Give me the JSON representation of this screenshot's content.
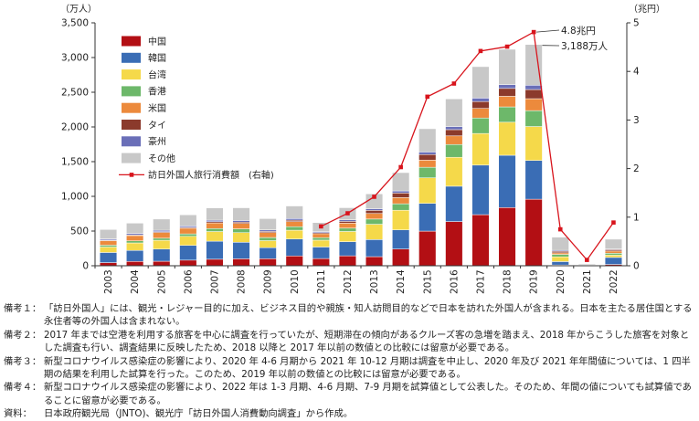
{
  "chart_data": {
    "type": "bar",
    "stacked": true,
    "left_unit": "（万人）",
    "right_unit": "（兆円）",
    "categories": [
      "2003",
      "2004",
      "2005",
      "2006",
      "2007",
      "2008",
      "2009",
      "2010",
      "2011",
      "2012",
      "2013",
      "2014",
      "2015",
      "2016",
      "2017",
      "2018",
      "2019",
      "2020",
      "2021",
      "2022"
    ],
    "ylim": [
      0,
      3500
    ],
    "yticks": [
      "0",
      "500",
      "1,000",
      "1,500",
      "2,000",
      "2,500",
      "3,000",
      "3,500"
    ],
    "y2lim": [
      0,
      5
    ],
    "y2ticks": [
      "0",
      "1",
      "2",
      "3",
      "4",
      "5"
    ],
    "grid": false,
    "legend_position": "top-left",
    "series": [
      {
        "name": "中国",
        "color": "#b30f14",
        "values": [
          45,
          62,
          65,
          81,
          94,
          100,
          101,
          141,
          104,
          143,
          131,
          241,
          499,
          637,
          736,
          838,
          959,
          11,
          4,
          19
        ]
      },
      {
        "name": "韓国",
        "color": "#3a6db5",
        "values": [
          146,
          159,
          175,
          212,
          260,
          238,
          159,
          244,
          166,
          204,
          246,
          276,
          400,
          509,
          714,
          754,
          558,
          49,
          2,
          101
        ]
      },
      {
        "name": "台湾",
        "color": "#f5d94a",
        "values": [
          79,
          108,
          127,
          131,
          139,
          139,
          102,
          127,
          99,
          147,
          221,
          283,
          368,
          417,
          456,
          476,
          489,
          69,
          1,
          33
        ]
      },
      {
        "name": "香港",
        "color": "#6db86a",
        "values": [
          26,
          30,
          30,
          35,
          43,
          55,
          45,
          51,
          36,
          48,
          75,
          93,
          152,
          184,
          223,
          221,
          229,
          35,
          1,
          27
        ]
      },
      {
        "name": "米国",
        "color": "#ec8a3c",
        "values": [
          66,
          76,
          82,
          82,
          82,
          77,
          70,
          73,
          57,
          72,
          80,
          89,
          103,
          124,
          138,
          153,
          172,
          22,
          2,
          32
        ]
      },
      {
        "name": "タイ",
        "color": "#8b3a2c",
        "values": [
          8,
          10,
          12,
          13,
          17,
          19,
          18,
          21,
          15,
          26,
          45,
          66,
          80,
          90,
          99,
          113,
          132,
          22,
          1,
          20
        ]
      },
      {
        "name": "豪州",
        "color": "#6a6fb8",
        "values": [
          17,
          19,
          21,
          20,
          22,
          24,
          21,
          23,
          16,
          21,
          24,
          30,
          38,
          45,
          50,
          55,
          62,
          14,
          0,
          9
        ]
      },
      {
        "name": "その他",
        "color": "#c8c8c8",
        "values": [
          135,
          150,
          161,
          160,
          177,
          183,
          163,
          181,
          129,
          175,
          214,
          264,
          334,
          398,
          453,
          509,
          587,
          190,
          14,
          142
        ]
      }
    ],
    "line": {
      "name": "訪日外国人旅行消費額　(右軸)",
      "color": "#d8141c",
      "values": [
        null,
        null,
        null,
        null,
        null,
        null,
        null,
        null,
        0.81,
        1.08,
        1.42,
        2.03,
        3.48,
        3.75,
        4.42,
        4.51,
        4.81,
        0.75,
        0.12,
        0.89
      ]
    },
    "annotations": [
      {
        "text": "4.8兆円"
      },
      {
        "text": "3,188万人"
      }
    ]
  },
  "notes": [
    {
      "label": "備考１：",
      "text": "「訪日外国人」には、観光・レジャー目的に加え、ビジネス目的や親族・知人訪問目的などで日本を訪れた外国人が含まれる。日本を主たる居住国とする永住者等の外国人は含まれない。"
    },
    {
      "label": "備考２：",
      "text": "2017 年までは空港を利用する旅客を中心に調査を行っていたが、短期滞在の傾向があるクルーズ客の急増を踏まえ、2018 年からこうした旅客を対象とした調査も行い、調査結果に反映したため、2018 以降と 2017 年以前の数値との比較には留意が必要である。"
    },
    {
      "label": "備考３：",
      "text": "新型コロナウイルス感染症の影響により、2020 年 4-6 月期から 2021 年 10-12 月期は調査を中止し、2020 年及び 2021 年年間値については、1 四半期の結果を利用した試算を行った。このため、2019 年以前の数値との比較には留意が必要である。"
    },
    {
      "label": "備考４：",
      "text": "新型コロナウイルス感染症の影響により、2022 年は 1-3 月期、4-6 月期、7-9 月期を試算値として公表した。そのため、年間の値についても試算値であることに留意が必要である。"
    },
    {
      "label": "資料：",
      "text": "日本政府観光局（JNTO)、観光庁「訪日外国人消費動向調査」から作成。"
    }
  ]
}
